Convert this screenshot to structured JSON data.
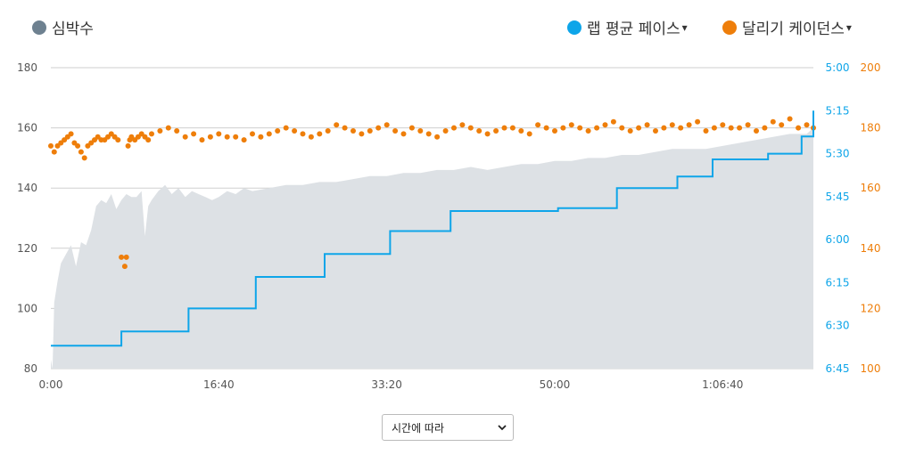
{
  "legend": {
    "heart_rate": {
      "label": "심박수",
      "color": "#6e8190"
    },
    "lap_pace": {
      "label": "랩 평균 페이스",
      "color": "#0ea5e9",
      "caret": "▾"
    },
    "cadence": {
      "label": "달리기 케이던스",
      "color": "#ee7e0a",
      "caret": "▾"
    }
  },
  "dropdown": {
    "selected": "시간에 따라"
  },
  "chart_data": {
    "type": "area",
    "x_unit": "seconds",
    "x_ticks": [
      {
        "value": 0,
        "label": "0:00"
      },
      {
        "value": 1000,
        "label": "16:40"
      },
      {
        "value": 2000,
        "label": "33:20"
      },
      {
        "value": 3000,
        "label": "50:00"
      },
      {
        "value": 4000,
        "label": "1:06:40"
      }
    ],
    "xlim": [
      0,
      4540
    ],
    "grid": true,
    "y_left": {
      "label": "",
      "ylim": [
        80,
        180
      ],
      "ticks": [
        80,
        100,
        120,
        140,
        160,
        180
      ]
    },
    "y_pace": {
      "label": "",
      "ticks": [
        "5:00",
        "5:15",
        "5:30",
        "5:45",
        "6:00",
        "6:15",
        "6:30",
        "6:45"
      ],
      "range_seconds": [
        300,
        405
      ],
      "reversed": true
    },
    "y_cadence": {
      "label": "",
      "ylim": [
        100,
        200
      ],
      "ticks": [
        100,
        120,
        140,
        160,
        180,
        200
      ]
    },
    "series": [
      {
        "name": "심박수",
        "kind": "area",
        "color": "#dde1e5",
        "x": [
          0,
          10,
          20,
          40,
          60,
          90,
          120,
          150,
          180,
          210,
          240,
          270,
          300,
          330,
          360,
          390,
          420,
          450,
          480,
          510,
          540,
          560,
          580,
          600,
          640,
          680,
          720,
          760,
          800,
          840,
          880,
          920,
          960,
          1000,
          1050,
          1100,
          1150,
          1200,
          1300,
          1400,
          1500,
          1600,
          1700,
          1800,
          1900,
          2000,
          2100,
          2200,
          2300,
          2400,
          2500,
          2600,
          2700,
          2800,
          2900,
          3000,
          3100,
          3200,
          3300,
          3400,
          3500,
          3600,
          3700,
          3800,
          3900,
          4000,
          4100,
          4200,
          4300,
          4400,
          4500,
          4540
        ],
        "values": [
          83,
          80,
          102,
          109,
          115,
          118,
          121,
          114,
          122,
          121,
          126,
          134,
          136,
          135,
          138,
          133,
          136,
          138,
          137,
          137,
          139,
          124,
          134,
          136,
          139,
          141,
          138,
          140,
          137,
          139,
          138,
          137,
          136,
          137,
          139,
          138,
          140,
          139,
          140,
          141,
          141,
          142,
          142,
          143,
          144,
          144,
          145,
          145,
          146,
          146,
          147,
          146,
          147,
          148,
          148,
          149,
          149,
          150,
          150,
          151,
          151,
          152,
          153,
          153,
          153,
          154,
          155,
          156,
          157,
          158,
          158,
          160
        ]
      },
      {
        "name": "랩 평균 페이스",
        "kind": "step",
        "color": "#0ea5e9",
        "x": [
          0,
          420,
          820,
          1220,
          1630,
          2020,
          2380,
          3020,
          3370,
          3730,
          3940,
          4270,
          4470,
          4540
        ],
        "values": [
          397,
          392,
          384,
          373,
          365,
          357,
          350,
          349,
          342,
          338,
          332,
          330,
          324,
          315
        ]
      },
      {
        "name": "달리기 케이던스",
        "kind": "scatter",
        "color": "#ee7e0a",
        "x": [
          0,
          20,
          40,
          60,
          80,
          100,
          120,
          140,
          160,
          180,
          200,
          220,
          240,
          260,
          280,
          300,
          320,
          340,
          360,
          380,
          400,
          420,
          440,
          450,
          460,
          470,
          480,
          500,
          520,
          540,
          560,
          580,
          600,
          650,
          700,
          750,
          800,
          850,
          900,
          950,
          1000,
          1050,
          1100,
          1150,
          1200,
          1250,
          1300,
          1350,
          1400,
          1450,
          1500,
          1550,
          1600,
          1650,
          1700,
          1750,
          1800,
          1850,
          1900,
          1950,
          2000,
          2050,
          2100,
          2150,
          2200,
          2250,
          2300,
          2350,
          2400,
          2450,
          2500,
          2550,
          2600,
          2650,
          2700,
          2750,
          2800,
          2850,
          2900,
          2950,
          3000,
          3050,
          3100,
          3150,
          3200,
          3250,
          3300,
          3350,
          3400,
          3450,
          3500,
          3550,
          3600,
          3650,
          3700,
          3750,
          3800,
          3850,
          3900,
          3950,
          4000,
          4050,
          4100,
          4150,
          4200,
          4250,
          4300,
          4350,
          4400,
          4450,
          4500,
          4540
        ],
        "values": [
          174,
          172,
          174,
          175,
          176,
          177,
          178,
          175,
          174,
          172,
          170,
          174,
          175,
          176,
          177,
          176,
          176,
          177,
          178,
          177,
          176,
          137,
          134,
          137,
          174,
          176,
          177,
          176,
          177,
          178,
          177,
          176,
          178,
          179,
          180,
          179,
          177,
          178,
          176,
          177,
          178,
          177,
          177,
          176,
          178,
          177,
          178,
          179,
          180,
          179,
          178,
          177,
          178,
          179,
          181,
          180,
          179,
          178,
          179,
          180,
          181,
          179,
          178,
          180,
          179,
          178,
          177,
          179,
          180,
          181,
          180,
          179,
          178,
          179,
          180,
          180,
          179,
          178,
          181,
          180,
          179,
          180,
          181,
          180,
          179,
          180,
          181,
          182,
          180,
          179,
          180,
          181,
          179,
          180,
          181,
          180,
          181,
          182,
          179,
          180,
          181,
          180,
          180,
          181,
          179,
          180,
          182,
          181,
          183,
          180,
          181,
          180
        ]
      }
    ]
  }
}
